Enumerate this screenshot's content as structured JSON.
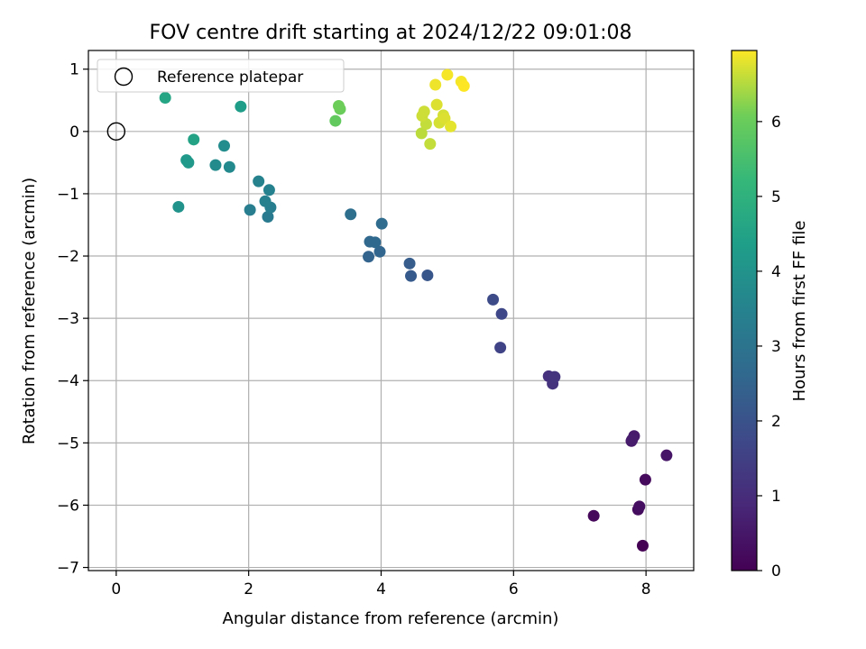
{
  "chart_data": {
    "type": "scatter",
    "title": "FOV centre drift starting at 2024/12/22 09:01:08",
    "xlabel": "Angular distance from reference (arcmin)",
    "ylabel": "Rotation from reference (arcmin)",
    "xlim": [
      -0.42,
      8.72
    ],
    "ylim": [
      -7.05,
      1.3
    ],
    "xticks": [
      0,
      2,
      4,
      6,
      8
    ],
    "yticks": [
      1,
      0,
      -1,
      -2,
      -3,
      -4,
      -5,
      -6,
      -7
    ],
    "grid": true,
    "legend": {
      "position": "top-left",
      "entries": [
        "Reference platepar"
      ]
    },
    "reference_point": {
      "x": 0,
      "y": 0
    },
    "colorbar": {
      "label": "Hours from first FF file",
      "colormap": "viridis",
      "range": [
        0,
        6.95
      ],
      "ticks": [
        0,
        1,
        2,
        3,
        4,
        5,
        6
      ]
    },
    "points": [
      {
        "x": 7.95,
        "y": -6.65,
        "h": 0.0
      },
      {
        "x": 7.21,
        "y": -6.17,
        "h": 0.15
      },
      {
        "x": 7.88,
        "y": -6.07,
        "h": 0.25
      },
      {
        "x": 7.9,
        "y": -6.02,
        "h": 0.3
      },
      {
        "x": 7.99,
        "y": -5.59,
        "h": 0.2
      },
      {
        "x": 8.31,
        "y": -5.2,
        "h": 0.45
      },
      {
        "x": 7.78,
        "y": -4.97,
        "h": 0.5
      },
      {
        "x": 7.82,
        "y": -4.89,
        "h": 0.55
      },
      {
        "x": 7.79,
        "y": -4.95,
        "h": 0.6
      },
      {
        "x": 6.53,
        "y": -3.93,
        "h": 1.1
      },
      {
        "x": 6.59,
        "y": -4.05,
        "h": 1.15
      },
      {
        "x": 6.62,
        "y": -3.94,
        "h": 1.2
      },
      {
        "x": 5.8,
        "y": -3.47,
        "h": 1.6
      },
      {
        "x": 5.82,
        "y": -2.93,
        "h": 1.7
      },
      {
        "x": 5.69,
        "y": -2.7,
        "h": 1.8
      },
      {
        "x": 4.7,
        "y": -2.31,
        "h": 2.1
      },
      {
        "x": 4.45,
        "y": -2.32,
        "h": 2.2
      },
      {
        "x": 4.43,
        "y": -2.12,
        "h": 2.3
      },
      {
        "x": 3.81,
        "y": -2.01,
        "h": 2.5
      },
      {
        "x": 3.98,
        "y": -1.93,
        "h": 2.55
      },
      {
        "x": 3.83,
        "y": -1.77,
        "h": 2.6
      },
      {
        "x": 3.91,
        "y": -1.78,
        "h": 2.65
      },
      {
        "x": 4.01,
        "y": -1.48,
        "h": 2.75
      },
      {
        "x": 3.54,
        "y": -1.33,
        "h": 2.85
      },
      {
        "x": 2.29,
        "y": -1.37,
        "h": 3.2
      },
      {
        "x": 2.02,
        "y": -1.26,
        "h": 3.3
      },
      {
        "x": 2.33,
        "y": -1.22,
        "h": 3.35
      },
      {
        "x": 2.25,
        "y": -1.12,
        "h": 3.4
      },
      {
        "x": 2.31,
        "y": -0.94,
        "h": 3.45
      },
      {
        "x": 2.15,
        "y": -0.8,
        "h": 3.5
      },
      {
        "x": 1.71,
        "y": -0.57,
        "h": 3.7
      },
      {
        "x": 1.5,
        "y": -0.54,
        "h": 3.75
      },
      {
        "x": 1.63,
        "y": -0.23,
        "h": 3.8
      },
      {
        "x": 0.94,
        "y": -1.21,
        "h": 4.0
      },
      {
        "x": 1.09,
        "y": -0.5,
        "h": 4.15
      },
      {
        "x": 1.06,
        "y": -0.46,
        "h": 4.2
      },
      {
        "x": 1.17,
        "y": -0.13,
        "h": 4.5
      },
      {
        "x": 0.74,
        "y": 0.54,
        "h": 4.6
      },
      {
        "x": 1.88,
        "y": 0.4,
        "h": 4.3
      },
      {
        "x": 3.31,
        "y": 0.17,
        "h": 5.9
      },
      {
        "x": 3.38,
        "y": 0.36,
        "h": 6.0
      },
      {
        "x": 3.36,
        "y": 0.41,
        "h": 6.05
      },
      {
        "x": 4.61,
        "y": -0.03,
        "h": 6.55
      },
      {
        "x": 4.74,
        "y": -0.2,
        "h": 6.6
      },
      {
        "x": 4.68,
        "y": 0.12,
        "h": 6.6
      },
      {
        "x": 4.62,
        "y": 0.25,
        "h": 6.65
      },
      {
        "x": 4.65,
        "y": 0.32,
        "h": 6.65
      },
      {
        "x": 4.88,
        "y": 0.14,
        "h": 6.7
      },
      {
        "x": 4.94,
        "y": 0.26,
        "h": 6.7
      },
      {
        "x": 4.84,
        "y": 0.43,
        "h": 6.75
      },
      {
        "x": 4.96,
        "y": 0.21,
        "h": 6.75
      },
      {
        "x": 5.05,
        "y": 0.08,
        "h": 6.8
      },
      {
        "x": 4.82,
        "y": 0.75,
        "h": 6.85
      },
      {
        "x": 5.0,
        "y": 0.91,
        "h": 6.9
      },
      {
        "x": 5.21,
        "y": 0.8,
        "h": 6.9
      },
      {
        "x": 5.25,
        "y": 0.73,
        "h": 6.95
      }
    ]
  }
}
